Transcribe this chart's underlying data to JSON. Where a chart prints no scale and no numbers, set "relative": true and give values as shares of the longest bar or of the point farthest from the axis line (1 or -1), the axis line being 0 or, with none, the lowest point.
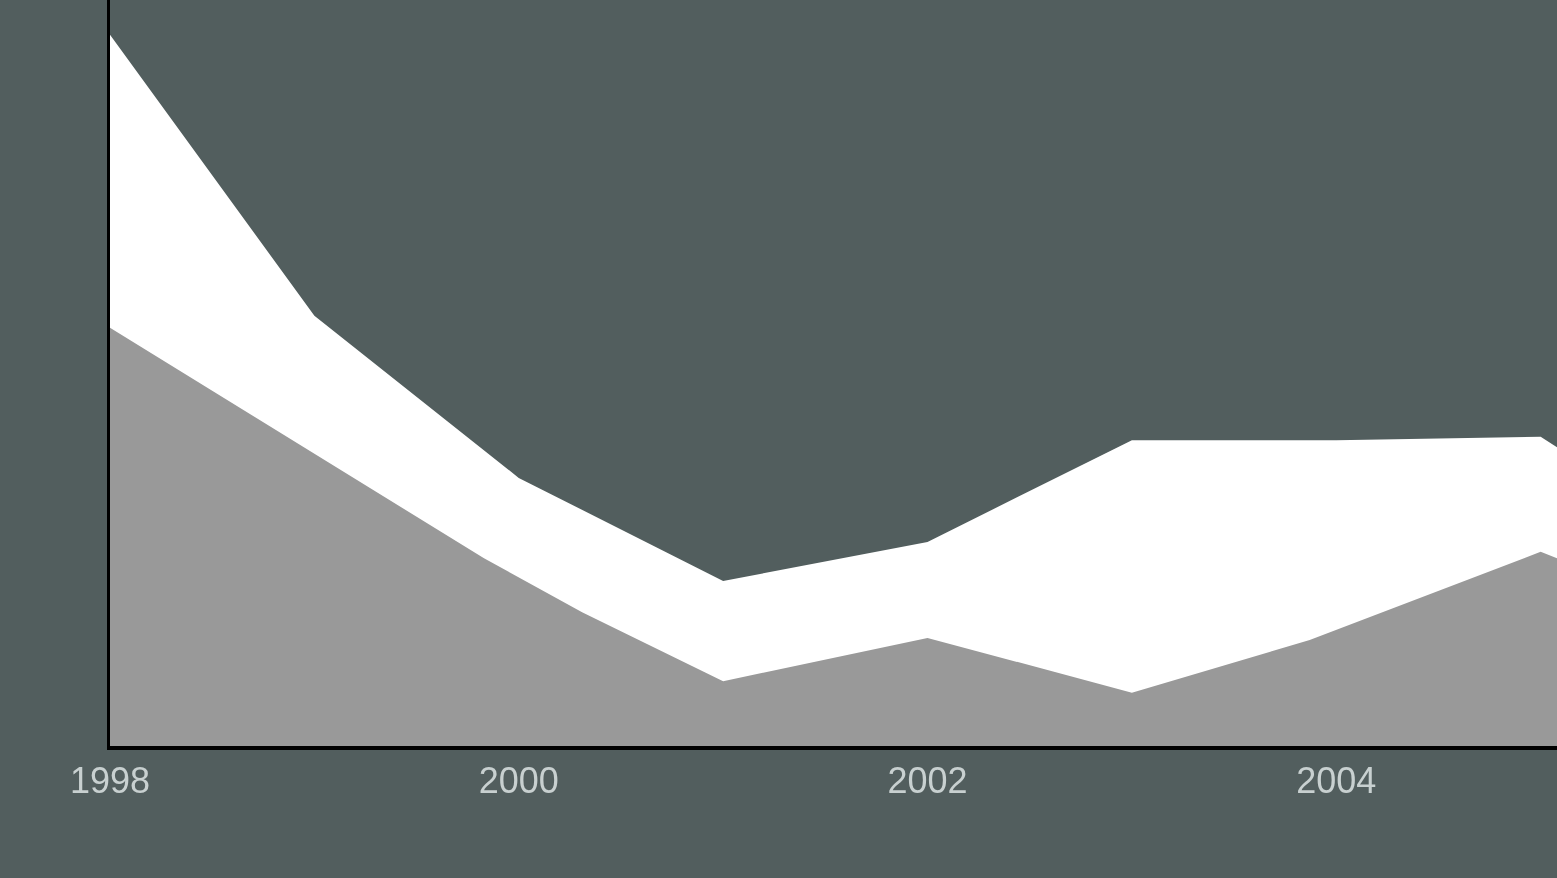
{
  "chart_data": {
    "type": "area",
    "relative": true,
    "xlim": [
      1998,
      2005.08
    ],
    "xticks": [
      1998,
      2000,
      2002,
      2004
    ],
    "series": [
      {
        "color": "#ffffff",
        "x": [
          1998,
          1999,
          2000,
          2001,
          2002,
          2003,
          2004,
          2005,
          2005.08
        ],
        "values": [
          1.0,
          0.605,
          0.377,
          0.232,
          0.287,
          0.43,
          0.43,
          0.435,
          0.42
        ]
      },
      {
        "color": "#999999",
        "x": [
          1998,
          1999.83,
          2000.31,
          2001,
          2002,
          2003,
          2003.87,
          2005,
          2005.08
        ],
        "values": [
          0.588,
          0.264,
          0.188,
          0.091,
          0.152,
          0.075,
          0.149,
          0.273,
          0.264
        ]
      }
    ]
  }
}
